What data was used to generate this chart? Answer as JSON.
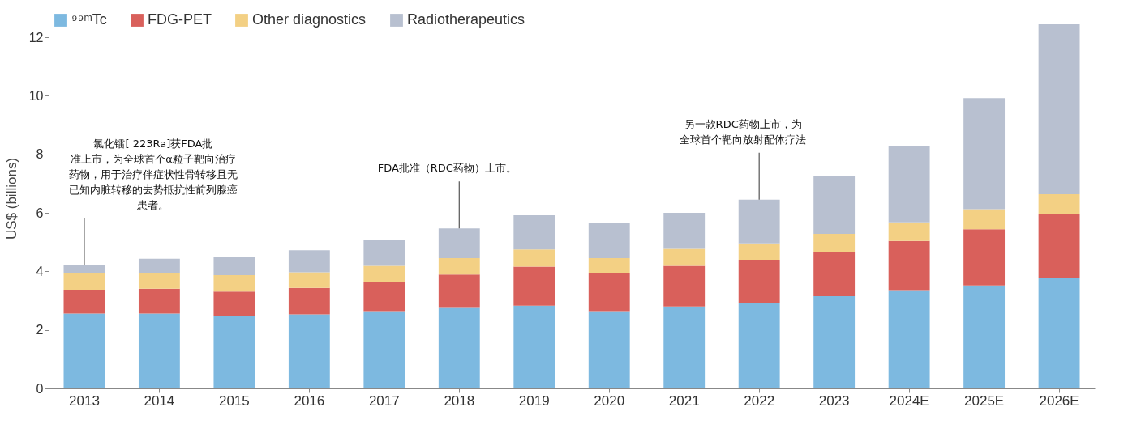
{
  "chart_data": {
    "type": "bar",
    "stacked": true,
    "ylabel": "US$ (billions)",
    "legend": "top left",
    "categories": [
      "2013",
      "2014",
      "2015",
      "2016",
      "2017",
      "2018",
      "2019",
      "2020",
      "2021",
      "2022",
      "2023",
      "2024E",
      "2025E",
      "2026E"
    ],
    "ylim": [
      0,
      13
    ],
    "yticks": [
      0,
      2,
      4,
      6,
      8,
      10,
      12
    ],
    "series": [
      {
        "name": "⁹⁹ᵐTc",
        "color": "#7db9e0",
        "values": [
          2.56,
          2.56,
          2.48,
          2.53,
          2.64,
          2.75,
          2.83,
          2.64,
          2.8,
          2.93,
          3.15,
          3.33,
          3.52,
          3.76
        ]
      },
      {
        "name": "FDG-PET",
        "color": "#d9605b",
        "values": [
          0.8,
          0.85,
          0.83,
          0.91,
          0.99,
          1.14,
          1.33,
          1.31,
          1.39,
          1.47,
          1.52,
          1.71,
          1.92,
          2.19
        ]
      },
      {
        "name": "Other diagnostics",
        "color": "#f3d084",
        "values": [
          0.59,
          0.54,
          0.56,
          0.53,
          0.56,
          0.56,
          0.59,
          0.5,
          0.58,
          0.56,
          0.61,
          0.64,
          0.69,
          0.69
        ]
      },
      {
        "name": "Radiotherapeutics",
        "color": "#b8c0d0",
        "values": [
          0.26,
          0.48,
          0.61,
          0.75,
          0.88,
          1.02,
          1.17,
          1.2,
          1.23,
          1.49,
          1.97,
          2.61,
          3.79,
          5.81
        ]
      }
    ],
    "annotations": [
      {
        "text": "氯化镭[ 223Ra]获FDA批准上市，为全球首个α粒子靶向治疗药物，用于治疗伴症状性骨转移且无已知内脏转移的去势抵抗性前列腺癌患者。",
        "x": "2013",
        "y": 4.21
      },
      {
        "text": "FDA批准（RDC药物）上市。",
        "x": "2018",
        "y": 5.47
      },
      {
        "text": "另一款RDC药物上市，为全球首个靶向放射配体疗法",
        "x": "2022",
        "y": 6.45
      }
    ]
  }
}
